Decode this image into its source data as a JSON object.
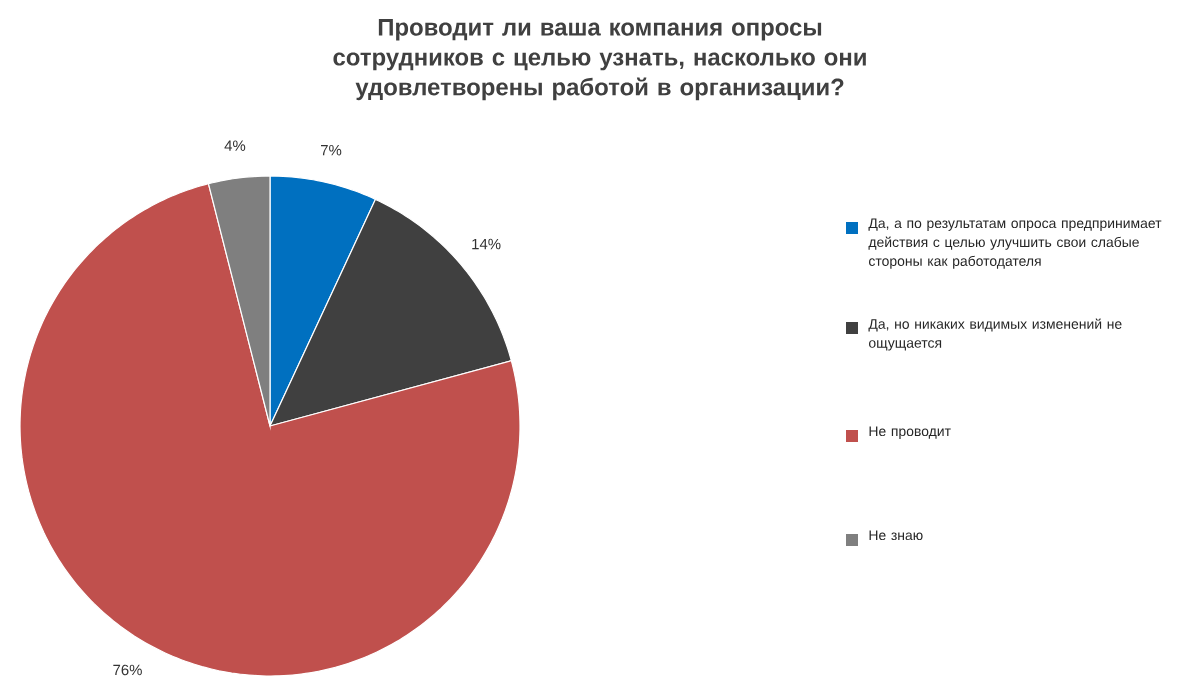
{
  "chart_data": {
    "type": "pie",
    "title": "Проводит ли ваша компания опросы сотрудников с целью узнать, насколько они удовлетворены работой в организации?",
    "categories": [
      "Да, а по результатам опроса предпринимает действия с целью улучшить свои слабые стороны как работодателя",
      "Да, но никаких видимых изменений не ощущается",
      "Не проводит",
      "Не знаю"
    ],
    "values": [
      7,
      14,
      76,
      4
    ],
    "value_labels": [
      "7%",
      "14%",
      "76%",
      "4%"
    ],
    "colors": [
      "#0070c0",
      "#404040",
      "#c0504d",
      "#7f7f7f"
    ],
    "legend": "right"
  }
}
